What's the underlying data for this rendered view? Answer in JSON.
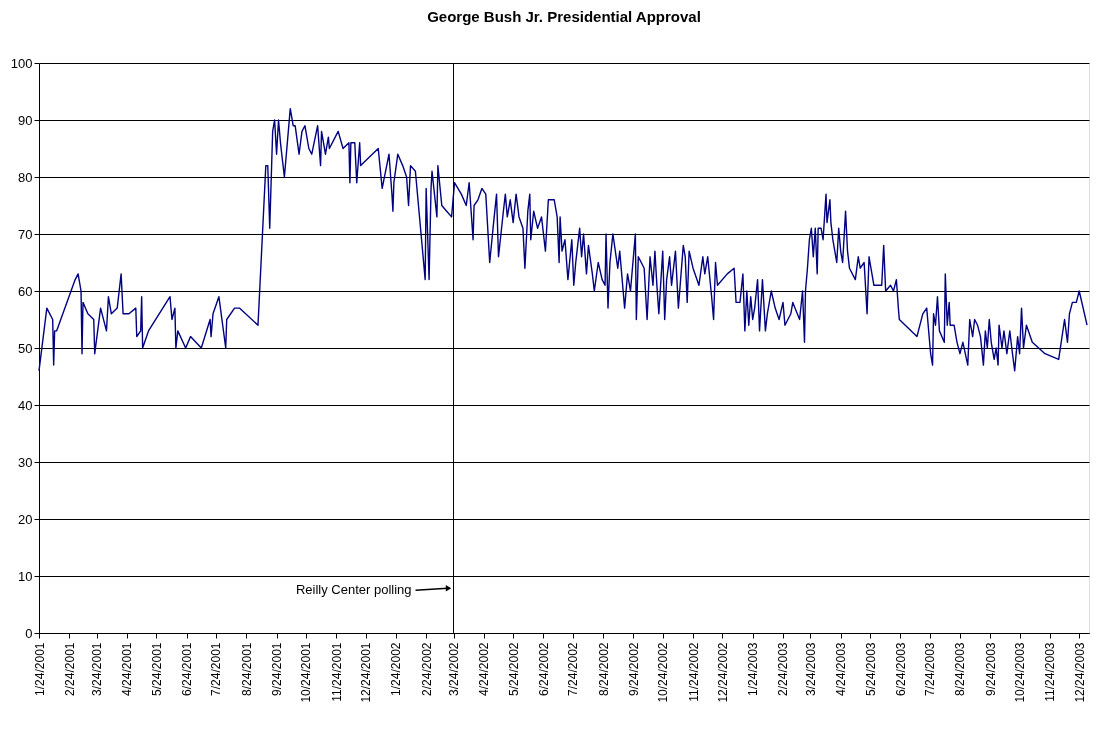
{
  "chart_data": {
    "type": "line",
    "title": "George Bush Jr. Presidential Approval",
    "x": [
      "2001-01-24",
      "2001-02-01",
      "2001-02-07",
      "2001-02-08",
      "2001-02-09",
      "2001-02-11",
      "2001-03-02",
      "2001-03-05",
      "2001-03-08",
      "2001-03-09",
      "2001-03-10",
      "2001-03-15",
      "2001-03-21",
      "2001-03-22",
      "2001-03-28",
      "2001-04-03",
      "2001-04-05",
      "2001-04-08",
      "2001-04-14",
      "2001-04-18",
      "2001-04-20",
      "2001-04-26",
      "2001-05-03",
      "2001-05-04",
      "2001-05-08",
      "2001-05-09",
      "2001-05-10",
      "2001-05-16",
      "2001-06-07",
      "2001-06-09",
      "2001-06-12",
      "2001-06-13",
      "2001-06-15",
      "2001-06-23",
      "2001-06-28",
      "2001-07-09",
      "2001-07-18",
      "2001-07-19",
      "2001-07-21",
      "2001-07-27",
      "2001-08-03",
      "2001-08-04",
      "2001-08-12",
      "2001-08-17",
      "2001-09-05",
      "2001-09-11",
      "2001-09-13",
      "2001-09-15",
      "2001-09-17",
      "2001-09-20",
      "2001-09-22",
      "2001-09-24",
      "2001-09-26",
      "2001-09-28",
      "2001-10-02",
      "2001-10-08",
      "2001-10-11",
      "2001-10-13",
      "2001-10-17",
      "2001-10-20",
      "2001-10-23",
      "2001-10-27",
      "2001-10-30",
      "2001-11-05",
      "2001-11-08",
      "2001-11-09",
      "2001-11-13",
      "2001-11-16",
      "2001-11-17",
      "2001-11-26",
      "2001-12-01",
      "2001-12-07",
      "2001-12-08",
      "2001-12-09",
      "2001-12-13",
      "2001-12-15",
      "2001-12-18",
      "2001-12-19",
      "2002-01-06",
      "2002-01-10",
      "2002-01-17",
      "2002-01-20",
      "2002-01-21",
      "2002-01-22",
      "2002-01-26",
      "2002-01-31",
      "2002-02-04",
      "2002-02-06",
      "2002-02-08",
      "2002-02-13",
      "2002-02-23",
      "2002-02-24",
      "2002-02-27",
      "2002-03-01",
      "2002-03-02",
      "2002-03-07",
      "2002-03-08",
      "2002-03-12",
      "2002-03-17",
      "2002-03-22",
      "2002-03-25",
      "2002-04-01",
      "2002-04-06",
      "2002-04-09",
      "2002-04-11",
      "2002-04-13",
      "2002-04-14",
      "2002-04-18",
      "2002-04-22",
      "2002-04-26",
      "2002-04-30",
      "2002-05-04",
      "2002-05-07",
      "2002-05-09",
      "2002-05-14",
      "2002-05-16",
      "2002-05-18",
      "2002-05-21",
      "2002-05-24",
      "2002-05-27",
      "2002-05-30",
      "2002-06-03",
      "2002-06-05",
      "2002-06-08",
      "2002-06-10",
      "2002-06-11",
      "2002-06-14",
      "2002-06-18",
      "2002-06-22",
      "2002-06-26",
      "2002-06-29",
      "2002-07-05",
      "2002-07-08",
      "2002-07-10",
      "2002-07-11",
      "2002-07-13",
      "2002-07-16",
      "2002-07-19",
      "2002-07-23",
      "2002-07-25",
      "2002-07-27",
      "2002-07-31",
      "2002-08-02",
      "2002-08-04",
      "2002-08-07",
      "2002-08-09",
      "2002-08-13",
      "2002-08-15",
      "2002-08-19",
      "2002-08-23",
      "2002-08-26",
      "2002-08-27",
      "2002-08-29",
      "2002-08-31",
      "2002-09-03",
      "2002-09-08",
      "2002-09-10",
      "2002-09-15",
      "2002-09-18",
      "2002-09-21",
      "2002-09-26",
      "2002-09-27",
      "2002-09-29",
      "2002-10-05",
      "2002-10-08",
      "2002-10-11",
      "2002-10-14",
      "2002-10-16",
      "2002-10-18",
      "2002-10-20",
      "2002-10-24",
      "2002-10-26",
      "2002-10-28",
      "2002-10-31",
      "2002-11-02",
      "2002-11-06",
      "2002-11-09",
      "2002-11-14",
      "2002-11-16",
      "2002-11-18",
      "2002-11-20",
      "2002-11-24",
      "2002-11-30",
      "2002-12-04",
      "2002-12-06",
      "2002-12-09",
      "2002-12-13",
      "2002-12-15",
      "2002-12-17",
      "2002-12-19",
      "2002-12-29",
      "2003-01-05",
      "2003-01-07",
      "2003-01-11",
      "2003-01-14",
      "2003-01-16",
      "2003-01-18",
      "2003-01-20",
      "2003-01-22",
      "2003-01-24",
      "2003-01-26",
      "2003-01-29",
      "2003-01-31",
      "2003-02-03",
      "2003-02-06",
      "2003-02-08",
      "2003-02-12",
      "2003-02-16",
      "2003-02-20",
      "2003-02-24",
      "2003-02-26",
      "2003-03-04",
      "2003-03-06",
      "2003-03-13",
      "2003-03-16",
      "2003-03-18",
      "2003-03-19",
      "2003-03-21",
      "2003-03-23",
      "2003-03-25",
      "2003-03-27",
      "2003-03-29",
      "2003-03-31",
      "2003-04-01",
      "2003-04-04",
      "2003-04-06",
      "2003-04-09",
      "2003-04-10",
      "2003-04-13",
      "2003-04-14",
      "2003-04-16",
      "2003-04-20",
      "2003-04-22",
      "2003-04-24",
      "2003-04-26",
      "2003-04-29",
      "2003-05-01",
      "2003-05-03",
      "2003-05-09",
      "2003-05-12",
      "2003-05-14",
      "2003-05-18",
      "2003-05-21",
      "2003-05-23",
      "2003-05-28",
      "2003-06-05",
      "2003-06-07",
      "2003-06-09",
      "2003-06-14",
      "2003-06-17",
      "2003-06-20",
      "2003-06-22",
      "2003-06-23",
      "2003-07-11",
      "2003-07-17",
      "2003-07-21",
      "2003-07-25",
      "2003-07-27",
      "2003-07-28",
      "2003-07-30",
      "2003-08-01",
      "2003-08-03",
      "2003-08-08",
      "2003-08-09",
      "2003-08-11",
      "2003-08-13",
      "2003-08-14",
      "2003-08-18",
      "2003-08-21",
      "2003-08-24",
      "2003-08-27",
      "2003-09-01",
      "2003-09-03",
      "2003-09-06",
      "2003-09-08",
      "2003-09-11",
      "2003-09-14",
      "2003-09-17",
      "2003-09-19",
      "2003-09-21",
      "2003-09-23",
      "2003-09-25",
      "2003-09-28",
      "2003-09-30",
      "2003-10-02",
      "2003-10-03",
      "2003-10-06",
      "2003-10-08",
      "2003-10-11",
      "2003-10-14",
      "2003-10-16",
      "2003-10-19",
      "2003-10-22",
      "2003-10-24",
      "2003-10-26",
      "2003-10-28",
      "2003-10-31",
      "2003-11-06",
      "2003-11-19",
      "2003-12-03",
      "2003-12-09",
      "2003-12-12",
      "2003-12-14",
      "2003-12-17",
      "2003-12-21",
      "2003-12-24",
      "2004-01-01"
    ],
    "series": [
      {
        "color": "#000080",
        "values": [
          46,
          57,
          55,
          47,
          53,
          53,
          62,
          63,
          60,
          49,
          58,
          56,
          55,
          49,
          57,
          53,
          59,
          56,
          57,
          63,
          56,
          56,
          57,
          52,
          53,
          59,
          50,
          53,
          59,
          55,
          57,
          50,
          53,
          50,
          52,
          50,
          55,
          52,
          56,
          59,
          50,
          55,
          57,
          57,
          54,
          75,
          82,
          82,
          71,
          88,
          90,
          84,
          90,
          86,
          80,
          92,
          89,
          89,
          84,
          88,
          89,
          85,
          84,
          89,
          82,
          88,
          84,
          87,
          85,
          88,
          85,
          86,
          79,
          86,
          86,
          79,
          86,
          82,
          85,
          78,
          84,
          77,
          74,
          79,
          84,
          82,
          80,
          75,
          82,
          81,
          62,
          78,
          62,
          78,
          81,
          73,
          82,
          75,
          74,
          73,
          79,
          77,
          75,
          79,
          74,
          69,
          75,
          76,
          78,
          77,
          65,
          72,
          77,
          66,
          74,
          77,
          73,
          76,
          72,
          77,
          73,
          71,
          64,
          74,
          77,
          69,
          74,
          71,
          73,
          67,
          76,
          76,
          73,
          65,
          73,
          67,
          69,
          62,
          69,
          61,
          65,
          71,
          66,
          70,
          63,
          68,
          63,
          60,
          65,
          62,
          61,
          70,
          57,
          65,
          70,
          64,
          67,
          57,
          63,
          60,
          70,
          55,
          66,
          64,
          55,
          66,
          61,
          67,
          61,
          56,
          67,
          55,
          62,
          66,
          61,
          67,
          57,
          68,
          66,
          58,
          67,
          64,
          61,
          66,
          63,
          66,
          59,
          55,
          65,
          61,
          63,
          64,
          58,
          58,
          63,
          53,
          60,
          54,
          59,
          55,
          57,
          62,
          53,
          62,
          53,
          56,
          60,
          57,
          55,
          58,
          54,
          56,
          58,
          55,
          60,
          51,
          60,
          64,
          69,
          71,
          66,
          71,
          63,
          71,
          71,
          69,
          77,
          72,
          76,
          72,
          69,
          65,
          71,
          67,
          65,
          74,
          67,
          64,
          62,
          66,
          64,
          65,
          56,
          66,
          61,
          61,
          68,
          60,
          61,
          60,
          62,
          57,
          55,
          52,
          56,
          57,
          49,
          47,
          56,
          54,
          59,
          53,
          51,
          63,
          54,
          58,
          54,
          54,
          51,
          49,
          51,
          47,
          55,
          52,
          55,
          54,
          52,
          47,
          53,
          50,
          55,
          51,
          48,
          50,
          47,
          54,
          50,
          53,
          49,
          53,
          50,
          46,
          52,
          49,
          57,
          50,
          54,
          51,
          49,
          48,
          55,
          51,
          56,
          58,
          58,
          60,
          54
        ]
      }
    ],
    "xlim": [
      "2001-01-24",
      "2004-01-03"
    ],
    "xticks": [
      {
        "value": "2001-01-24",
        "label": "1/24/2001"
      },
      {
        "value": "2001-02-24",
        "label": "2/24/2001"
      },
      {
        "value": "2001-03-24",
        "label": "3/24/2001"
      },
      {
        "value": "2001-04-24",
        "label": "4/24/2001"
      },
      {
        "value": "2001-05-24",
        "label": "5/24/2001"
      },
      {
        "value": "2001-06-24",
        "label": "6/24/2001"
      },
      {
        "value": "2001-07-24",
        "label": "7/24/2001"
      },
      {
        "value": "2001-08-24",
        "label": "8/24/2001"
      },
      {
        "value": "2001-09-24",
        "label": "9/24/2001"
      },
      {
        "value": "2001-10-24",
        "label": "10/24/2001"
      },
      {
        "value": "2001-11-24",
        "label": "11/24/2001"
      },
      {
        "value": "2001-12-24",
        "label": "12/24/2001"
      },
      {
        "value": "2002-01-24",
        "label": "1/24/2002"
      },
      {
        "value": "2002-02-24",
        "label": "2/24/2002"
      },
      {
        "value": "2002-03-24",
        "label": "3/24/2002"
      },
      {
        "value": "2002-04-24",
        "label": "4/24/2002"
      },
      {
        "value": "2002-05-24",
        "label": "5/24/2002"
      },
      {
        "value": "2002-06-24",
        "label": "6/24/2002"
      },
      {
        "value": "2002-07-24",
        "label": "7/24/2002"
      },
      {
        "value": "2002-08-24",
        "label": "8/24/2002"
      },
      {
        "value": "2002-09-24",
        "label": "9/24/2002"
      },
      {
        "value": "2002-10-24",
        "label": "10/24/2002"
      },
      {
        "value": "2002-11-24",
        "label": "11/24/2002"
      },
      {
        "value": "2002-12-24",
        "label": "12/24/2002"
      },
      {
        "value": "2003-01-24",
        "label": "1/24/2003"
      },
      {
        "value": "2003-02-24",
        "label": "2/24/2003"
      },
      {
        "value": "2003-03-24",
        "label": "3/24/2003"
      },
      {
        "value": "2003-04-24",
        "label": "4/24/2003"
      },
      {
        "value": "2003-05-24",
        "label": "5/24/2003"
      },
      {
        "value": "2003-06-24",
        "label": "6/24/2003"
      },
      {
        "value": "2003-07-24",
        "label": "7/24/2003"
      },
      {
        "value": "2003-08-24",
        "label": "8/24/2003"
      },
      {
        "value": "2003-09-24",
        "label": "9/24/2003"
      },
      {
        "value": "2003-10-24",
        "label": "10/24/2003"
      },
      {
        "value": "2003-11-24",
        "label": "11/24/2003"
      },
      {
        "value": "2003-12-24",
        "label": "12/24/2003"
      }
    ],
    "ylim": [
      0,
      100
    ],
    "yticks": [
      0,
      10,
      20,
      30,
      40,
      50,
      60,
      70,
      80,
      90,
      100
    ],
    "grid": "y",
    "marker": "none",
    "line_style": "solid",
    "ref_lines": [
      {
        "axis": "x",
        "value": "2002-03-24",
        "label": "Reilly Center polling",
        "color": "#000000"
      }
    ]
  }
}
